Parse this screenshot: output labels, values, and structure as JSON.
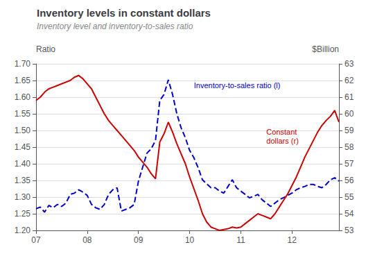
{
  "chart_data": {
    "type": "line",
    "title": "Inventory levels in constant dollars",
    "subtitle": "Inventory level and inventory-to-sales ratio",
    "ylabel": "Ratio",
    "y2label": "$Billion",
    "categories": [
      "07",
      null,
      null,
      null,
      null,
      null,
      null,
      null,
      null,
      null,
      null,
      null,
      "08",
      null,
      null,
      null,
      null,
      null,
      null,
      null,
      null,
      null,
      null,
      null,
      "09",
      null,
      null,
      null,
      null,
      null,
      null,
      null,
      null,
      null,
      null,
      null,
      "10",
      null,
      null,
      null,
      null,
      null,
      null,
      null,
      null,
      null,
      null,
      null,
      "11",
      null,
      null,
      null,
      null,
      null,
      null,
      null,
      null,
      null,
      null,
      null,
      "12",
      null,
      null,
      null,
      null,
      null,
      null,
      null,
      null,
      null,
      null,
      null
    ],
    "series": [
      {
        "name": "Inventory-to-sales ratio (l)",
        "color": "#0000CC",
        "line_style": "dashed",
        "values": [
          1.265,
          1.27,
          1.255,
          1.275,
          1.268,
          1.278,
          1.272,
          1.282,
          1.308,
          1.312,
          1.322,
          1.315,
          1.305,
          1.278,
          1.268,
          1.263,
          1.278,
          1.308,
          1.322,
          1.328,
          1.258,
          1.263,
          1.268,
          1.278,
          1.348,
          1.39,
          1.432,
          1.445,
          1.47,
          1.59,
          1.608,
          1.652,
          1.608,
          1.55,
          1.508,
          1.478,
          1.44,
          1.418,
          1.388,
          1.352,
          1.34,
          1.328,
          1.328,
          1.318,
          1.312,
          1.332,
          1.352,
          1.328,
          1.318,
          1.308,
          1.298,
          1.302,
          1.308,
          1.292,
          1.282,
          1.272,
          1.282,
          1.292,
          1.298,
          1.305,
          1.312,
          1.322,
          1.328,
          1.332,
          1.338,
          1.338,
          1.332,
          1.328,
          1.338,
          1.352,
          1.358,
          1.348
        ]
      },
      {
        "name": "Constant\ndollars (r)",
        "color": "#CC0000",
        "line_style": "solid",
        "axis": "y2",
        "values": [
          60.8,
          61.0,
          61.3,
          61.5,
          61.6,
          61.7,
          61.8,
          61.9,
          62.0,
          62.2,
          62.3,
          62.1,
          61.8,
          61.5,
          61.0,
          60.5,
          60.0,
          59.6,
          59.3,
          59.0,
          58.7,
          58.4,
          58.1,
          57.8,
          57.4,
          57.1,
          56.8,
          56.4,
          56.1,
          58.3,
          58.8,
          59.5,
          58.9,
          58.2,
          57.6,
          57.0,
          56.2,
          55.5,
          54.8,
          54.0,
          53.5,
          53.2,
          53.1,
          53.0,
          53.05,
          53.1,
          53.2,
          53.15,
          53.2,
          53.4,
          53.6,
          53.8,
          54.0,
          53.9,
          53.8,
          53.7,
          54.0,
          54.4,
          54.8,
          55.2,
          55.7,
          56.2,
          56.8,
          57.4,
          57.9,
          58.4,
          58.9,
          59.3,
          59.6,
          59.85,
          60.2,
          59.5
        ]
      }
    ],
    "ylim": [
      1.2,
      1.7
    ],
    "yticks": [
      {
        "value": 1.2,
        "label": "1.20"
      },
      1.25,
      {
        "value": 1.3,
        "label": "1.30"
      },
      1.35,
      {
        "value": 1.4,
        "label": "1.40"
      },
      1.45,
      {
        "value": 1.5,
        "label": "1.50"
      },
      1.55,
      {
        "value": 1.6,
        "label": "1.60"
      },
      1.65,
      {
        "value": 1.7,
        "label": "1.70"
      }
    ],
    "y2lim": [
      53,
      63
    ],
    "y2ticks": [
      53,
      54,
      55,
      56,
      57,
      58,
      59,
      60,
      61,
      62,
      63
    ],
    "grid": true
  }
}
